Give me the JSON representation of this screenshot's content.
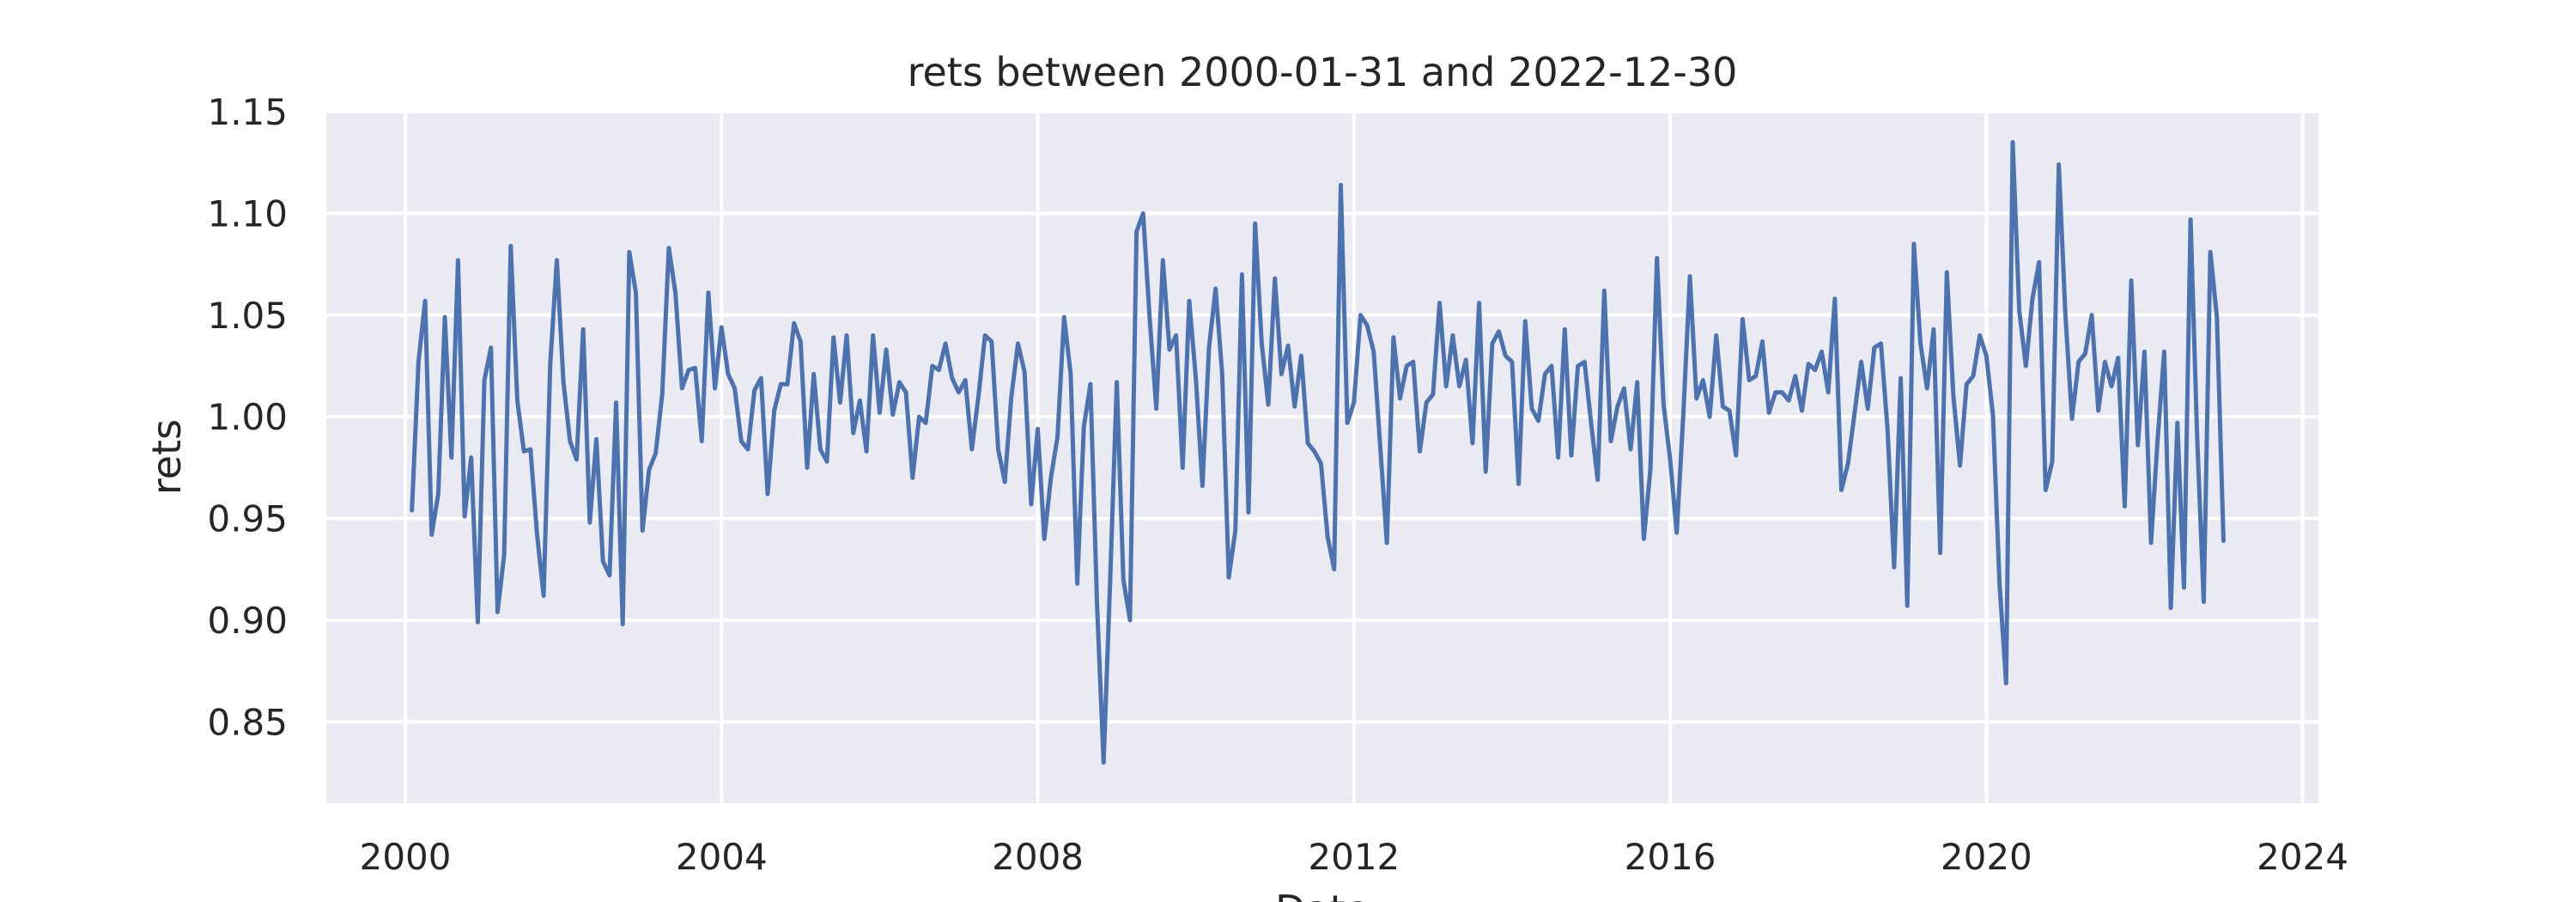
{
  "chart_data": {
    "type": "line",
    "title": "rets between 2000-01-31 and 2022-12-30",
    "xlabel": "Date",
    "ylabel": "rets",
    "xlim": [
      1999.0,
      2024.2
    ],
    "ylim": [
      0.81,
      1.15
    ],
    "x_ticks": [
      2000,
      2004,
      2008,
      2012,
      2016,
      2020,
      2024
    ],
    "y_ticks": [
      0.85,
      0.9,
      0.95,
      1.0,
      1.05,
      1.1,
      1.15
    ],
    "y_tick_labels": [
      "0.85",
      "0.90",
      "0.95",
      "1.00",
      "1.05",
      "1.10",
      "1.15"
    ],
    "grid": true,
    "start_year": 2000.083,
    "step_years": 0.083333,
    "series": [
      {
        "name": "rets",
        "color": "#4c72b0",
        "values": [
          0.954,
          1.027,
          1.057,
          0.942,
          0.962,
          1.049,
          0.98,
          1.077,
          0.951,
          0.98,
          0.899,
          1.018,
          1.034,
          0.904,
          0.932,
          1.084,
          1.008,
          0.983,
          0.984,
          0.942,
          0.912,
          1.026,
          1.077,
          1.017,
          0.988,
          0.979,
          1.043,
          0.948,
          0.989,
          0.929,
          0.922,
          1.007,
          0.898,
          1.081,
          1.061,
          0.944,
          0.974,
          0.982,
          1.011,
          1.083,
          1.061,
          1.014,
          1.023,
          1.024,
          0.988,
          1.061,
          1.014,
          1.044,
          1.021,
          1.014,
          0.988,
          0.984,
          1.013,
          1.019,
          0.962,
          1.003,
          1.016,
          1.016,
          1.046,
          1.037,
          0.975,
          1.021,
          0.984,
          0.978,
          1.039,
          1.007,
          1.04,
          0.992,
          1.008,
          0.983,
          1.04,
          1.002,
          1.033,
          1.001,
          1.017,
          1.012,
          0.97,
          1.0,
          0.997,
          1.025,
          1.023,
          1.036,
          1.019,
          1.012,
          1.018,
          0.984,
          1.01,
          1.04,
          1.037,
          0.984,
          0.968,
          1.01,
          1.036,
          1.022,
          0.957,
          0.994,
          0.94,
          0.97,
          0.99,
          1.049,
          1.021,
          0.918,
          0.995,
          1.016,
          0.908,
          0.83,
          0.92,
          1.017,
          0.92,
          0.9,
          1.091,
          1.1,
          1.048,
          1.004,
          1.077,
          1.033,
          1.04,
          0.975,
          1.057,
          1.019,
          0.966,
          1.034,
          1.063,
          1.021,
          0.921,
          0.944,
          1.07,
          0.953,
          1.095,
          1.036,
          1.006,
          1.068,
          1.021,
          1.035,
          1.005,
          1.03,
          0.987,
          0.983,
          0.977,
          0.941,
          0.925,
          1.114,
          0.997,
          1.007,
          1.05,
          1.045,
          1.032,
          0.985,
          0.938,
          1.039,
          1.009,
          1.025,
          1.027,
          0.983,
          1.007,
          1.011,
          1.056,
          1.015,
          1.04,
          1.015,
          1.028,
          0.987,
          1.056,
          0.973,
          1.036,
          1.042,
          1.03,
          1.027,
          0.967,
          1.047,
          1.004,
          0.998,
          1.021,
          1.025,
          0.98,
          1.043,
          0.981,
          1.025,
          1.027,
          0.997,
          0.969,
          1.062,
          0.988,
          1.005,
          1.014,
          0.984,
          1.017,
          0.94,
          0.974,
          1.078,
          1.006,
          0.979,
          0.943,
          1.001,
          1.069,
          1.009,
          1.018,
          1.0,
          1.04,
          1.005,
          1.003,
          0.981,
          1.048,
          1.018,
          1.02,
          1.037,
          1.002,
          1.012,
          1.012,
          1.008,
          1.02,
          1.003,
          1.026,
          1.023,
          1.032,
          1.012,
          1.058,
          0.964,
          0.977,
          1.002,
          1.027,
          1.004,
          1.034,
          1.036,
          0.994,
          0.926,
          1.019,
          0.907,
          1.085,
          1.036,
          1.014,
          1.043,
          0.933,
          1.071,
          1.01,
          0.976,
          1.016,
          1.02,
          1.04,
          1.03,
          1.001,
          0.918,
          0.869,
          1.135,
          1.052,
          1.025,
          1.058,
          1.076,
          0.964,
          0.978,
          1.124,
          1.05,
          0.999,
          1.027,
          1.031,
          1.05,
          1.003,
          1.027,
          1.015,
          1.029,
          0.956,
          1.067,
          0.986,
          1.032,
          0.938,
          0.989,
          1.032,
          0.906,
          0.997,
          0.916,
          1.097,
          0.99,
          0.909,
          1.081,
          1.049,
          0.939
        ]
      }
    ]
  }
}
